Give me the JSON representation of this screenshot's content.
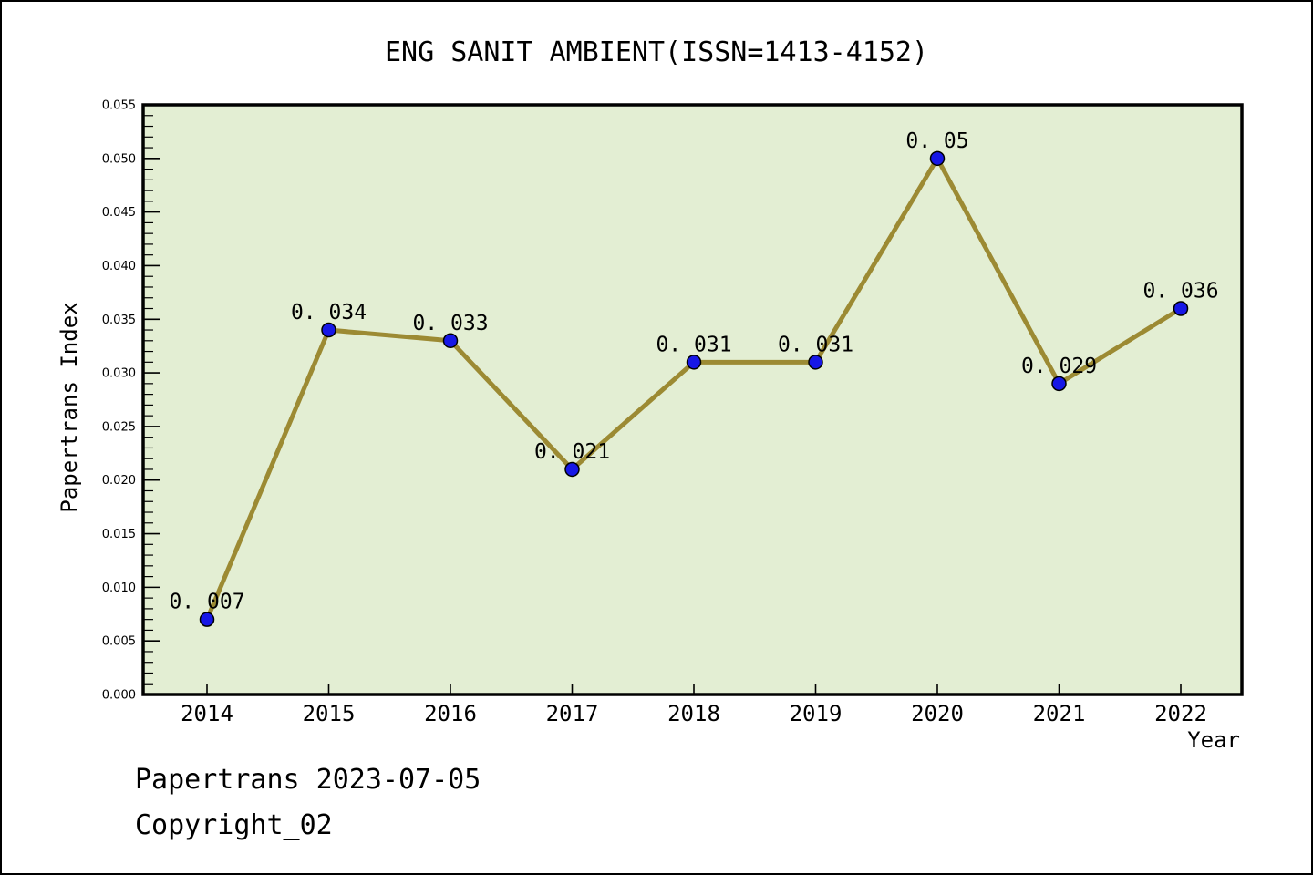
{
  "chart_data": {
    "type": "line",
    "title": "ENG SANIT AMBIENT(ISSN=1413-4152)",
    "xlabel": "Year",
    "ylabel": "Papertrans Index",
    "categories": [
      2014,
      2015,
      2016,
      2017,
      2018,
      2019,
      2020,
      2021,
      2022
    ],
    "values": [
      0.007,
      0.034,
      0.033,
      0.021,
      0.031,
      0.031,
      0.05,
      0.029,
      0.036
    ],
    "point_labels": [
      "0. 007",
      "0. 034",
      "0. 033",
      "0. 021",
      "0. 031",
      "0. 031",
      "0. 05",
      "0. 029",
      "0. 036"
    ],
    "ylim": [
      0,
      0.055
    ],
    "ytick_major": 0.005,
    "ytick_minor": 0.001,
    "grid": false,
    "legend": "none",
    "plot_bg": "#e3eed3",
    "line_color": "#9c8a33",
    "marker_color": "#1717e6",
    "marker_edge": "#000000",
    "axis_color": "#000000",
    "page_bg": "#ffffff"
  },
  "footer": {
    "line1": "Papertrans 2023-07-05",
    "line2": "Copyright_02"
  }
}
